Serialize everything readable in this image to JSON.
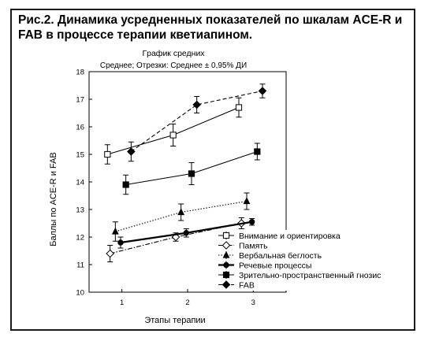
{
  "caption": "Рис.2. Динамика усредненных показателей по шкалам ACE-R и FAB в процессе терапии кветиапином.",
  "chart_data": {
    "type": "line",
    "title": "Гpaфик средних",
    "subtitle": "Среднее; Отрезки: Среднее ± 0,95% ДИ",
    "xlabel": "Этапы терапии",
    "ylabel": "Баллы по ACE-R и FAB",
    "categories": [
      "1",
      "2",
      "3"
    ],
    "ylim": [
      10,
      18
    ],
    "yticks": [
      "10",
      "11",
      "12",
      "13",
      "14",
      "15",
      "16",
      "17",
      "18"
    ],
    "legend_position": "bottom-right",
    "series": [
      {
        "name": "Внимание и ориентировка",
        "marker": "open-square",
        "line": "solid",
        "x": [
          0.78,
          1.78,
          2.78
        ],
        "y": [
          15.0,
          15.7,
          16.7
        ],
        "err": [
          0.35,
          0.4,
          0.35
        ]
      },
      {
        "name": "Память",
        "marker": "open-diamond",
        "line": "dash-dot",
        "x": [
          0.82,
          1.82,
          2.82
        ],
        "y": [
          11.4,
          12.0,
          12.5
        ],
        "err": [
          0.3,
          0.15,
          0.2
        ]
      },
      {
        "name": "Вербальная беглость",
        "marker": "filled-triangle",
        "line": "dotted",
        "x": [
          0.9,
          1.9,
          2.9
        ],
        "y": [
          12.2,
          12.9,
          13.3
        ],
        "err": [
          0.35,
          0.3,
          0.3
        ]
      },
      {
        "name": "Речевые процессы",
        "marker": "filled-circle",
        "line": "thick-solid",
        "x": [
          0.98,
          1.98,
          2.98
        ],
        "y": [
          11.8,
          12.15,
          12.55
        ],
        "err": [
          0.2,
          0.15,
          0.12
        ]
      },
      {
        "name": "Зрительно-пространственный гнозис",
        "marker": "filled-square",
        "line": "solid",
        "x": [
          1.06,
          2.06,
          3.06
        ],
        "y": [
          13.9,
          14.3,
          15.1
        ],
        "err": [
          0.35,
          0.4,
          0.3
        ]
      },
      {
        "name": "FAB",
        "marker": "filled-diamond",
        "line": "dashed",
        "x": [
          1.14,
          2.14,
          3.14
        ],
        "y": [
          15.1,
          16.8,
          17.3
        ],
        "err": [
          0.35,
          0.3,
          0.25
        ]
      }
    ]
  }
}
